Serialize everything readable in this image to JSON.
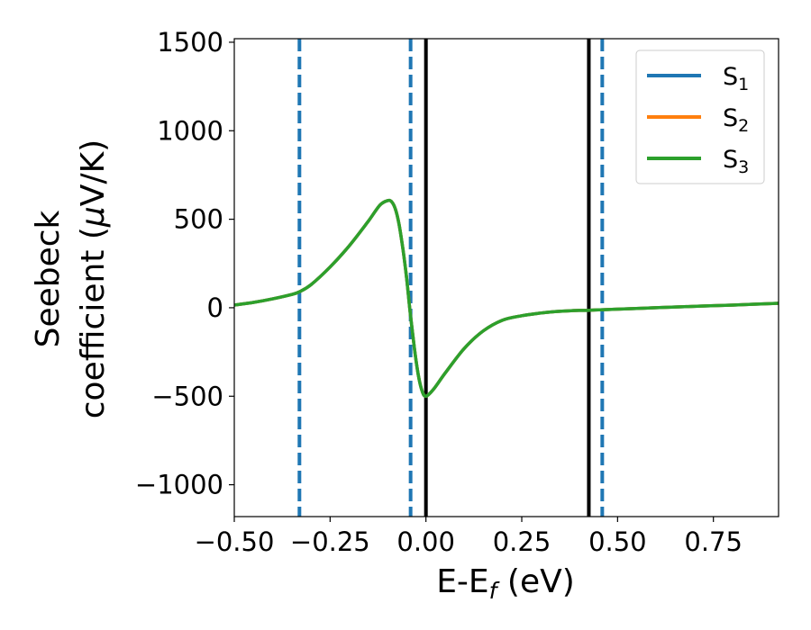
{
  "chart_data": {
    "type": "line",
    "xlabel": {
      "main": "E-E",
      "sub": "f",
      "suffix": " (eV)"
    },
    "ylabel": {
      "line1": "Seebeck",
      "line2_prefix": "coefficient  (",
      "mu": "μ",
      "line2_suffix": "V/K)"
    },
    "xlim": [
      -0.5,
      0.92
    ],
    "ylim": [
      -1180,
      1520
    ],
    "xticks": [
      -0.5,
      -0.25,
      0.0,
      0.25,
      0.5,
      0.75
    ],
    "xtick_labels": [
      "−0.50",
      "−0.25",
      "0.00",
      "0.25",
      "0.50",
      "0.75"
    ],
    "yticks": [
      -1000,
      -500,
      0,
      500,
      1000,
      1500
    ],
    "ytick_labels": [
      "−1000",
      "−500",
      "0",
      "500",
      "1000",
      "1500"
    ],
    "grid": false,
    "legend_position": "top-right",
    "series": [
      {
        "name": "S",
        "sub": "1",
        "color": "#1f77b4"
      },
      {
        "name": "S",
        "sub": "2",
        "color": "#ff7f0e"
      },
      {
        "name": "S",
        "sub": "3",
        "color": "#2ca02c"
      }
    ],
    "curve": {
      "x": [
        -0.5,
        -0.45,
        -0.4,
        -0.35,
        -0.33,
        -0.3,
        -0.25,
        -0.2,
        -0.15,
        -0.12,
        -0.1,
        -0.09,
        -0.08,
        -0.07,
        -0.06,
        -0.05,
        -0.04,
        -0.03,
        -0.02,
        -0.01,
        0.0,
        0.02,
        0.05,
        0.1,
        0.15,
        0.2,
        0.25,
        0.3,
        0.35,
        0.4,
        0.42,
        0.45,
        0.5,
        0.6,
        0.7,
        0.8,
        0.92
      ],
      "y": [
        15,
        30,
        50,
        75,
        90,
        130,
        230,
        350,
        490,
        580,
        605,
        600,
        560,
        470,
        330,
        160,
        -50,
        -230,
        -380,
        -470,
        -500,
        -460,
        -370,
        -230,
        -130,
        -70,
        -45,
        -30,
        -20,
        -15,
        -15,
        -12,
        -8,
        0,
        8,
        15,
        25
      ]
    },
    "vlines_dashed": {
      "x": [
        -0.33,
        -0.04,
        0.46
      ],
      "color": "#1f77b4"
    },
    "vlines_solid": {
      "x": [
        0.0,
        0.425
      ],
      "color": "#000000"
    }
  }
}
